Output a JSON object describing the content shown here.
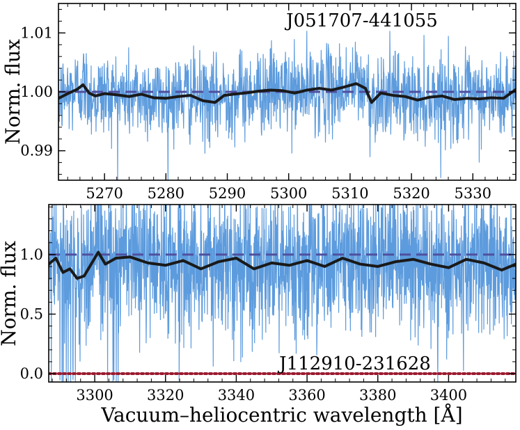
{
  "figure": {
    "shared_xlabel": "Vacuum–heliocentric wavelength [Å]"
  },
  "chart_data": [
    {
      "type": "line",
      "title": "J051707-441055",
      "ylabel": "Norm. flux",
      "xlabel": "",
      "xlim": [
        5262.5,
        5337
      ],
      "ylim": [
        0.985,
        1.015
      ],
      "xticks": [
        5270,
        5280,
        5290,
        5300,
        5310,
        5320,
        5330
      ],
      "yticks": [
        0.99,
        1.0,
        1.01
      ],
      "ytick_labels": [
        "0.99",
        "1.00",
        "1.01"
      ],
      "reference_lines": [
        {
          "y": 1.0,
          "style": "dashed",
          "color": "#4f4f9f"
        }
      ],
      "series": [
        {
          "name": "spectrum",
          "color": "#4a90d9",
          "noise_sigma": 0.0036,
          "n_points": 1500
        },
        {
          "name": "smoothed",
          "color": "#1a1a1a",
          "x": [
            5262.5,
            5264,
            5265.5,
            5266.5,
            5267.5,
            5268.5,
            5270,
            5272,
            5274,
            5276,
            5278,
            5280,
            5282,
            5284,
            5286,
            5288,
            5289.5,
            5291,
            5293,
            5295,
            5297,
            5299,
            5301,
            5303,
            5305,
            5307,
            5309,
            5311,
            5312.5,
            5313.5,
            5315,
            5317,
            5319,
            5321,
            5323,
            5325,
            5327,
            5329,
            5331,
            5333,
            5335,
            5337
          ],
          "y": [
            0.9989,
            0.9997,
            1.0004,
            1.0012,
            0.9998,
            0.9993,
            0.9997,
            0.9995,
            0.9992,
            0.9996,
            0.999,
            0.9989,
            0.9992,
            0.9994,
            0.9985,
            0.9982,
            0.9994,
            0.9996,
            0.9998,
            1.0001,
            1.0003,
            1.0002,
            0.9998,
            1.0003,
            1.0006,
            1.0003,
            1.0008,
            1.0014,
            1.0006,
            0.9982,
            0.9998,
            0.9994,
            0.9992,
            0.9986,
            0.9991,
            0.9993,
            0.9987,
            0.9989,
            0.9988,
            0.999,
            0.9989,
            1.0004
          ]
        }
      ]
    },
    {
      "type": "line",
      "title": "J112910-231628",
      "ylabel": "Norm. flux",
      "xlabel": "Vacuum–heliocentric wavelength [Å]",
      "xlim": [
        3287,
        3419
      ],
      "ylim": [
        -0.07,
        1.42
      ],
      "xticks": [
        3300,
        3320,
        3340,
        3360,
        3380,
        3400
      ],
      "yticks": [
        0.0,
        0.5,
        1.0
      ],
      "ytick_labels": [
        "0.0",
        "0.5",
        "1.0"
      ],
      "reference_lines": [
        {
          "y": 1.0,
          "style": "dashed",
          "color": "#4f4f9f"
        },
        {
          "y": 0.0,
          "style": "dotted",
          "color": "#9b1b30"
        }
      ],
      "series": [
        {
          "name": "spectrum",
          "color": "#4a90d9",
          "noise_sigma": 0.3,
          "n_points": 2000
        },
        {
          "name": "smoothed",
          "color": "#1a1a1a",
          "x": [
            3287,
            3289,
            3291,
            3293,
            3295,
            3297,
            3299,
            3301,
            3303,
            3306,
            3310,
            3315,
            3320,
            3325,
            3330,
            3335,
            3340,
            3345,
            3350,
            3355,
            3360,
            3365,
            3370,
            3375,
            3380,
            3385,
            3390,
            3395,
            3400,
            3405,
            3410,
            3415,
            3419
          ],
          "y": [
            0.92,
            0.97,
            0.85,
            0.88,
            0.8,
            0.82,
            0.92,
            1.02,
            0.92,
            0.97,
            0.98,
            0.93,
            0.91,
            0.95,
            0.88,
            0.94,
            0.97,
            0.88,
            0.93,
            0.91,
            0.95,
            0.9,
            0.97,
            0.92,
            0.9,
            0.94,
            0.96,
            0.92,
            0.89,
            0.96,
            0.93,
            0.87,
            0.92
          ]
        }
      ]
    }
  ]
}
